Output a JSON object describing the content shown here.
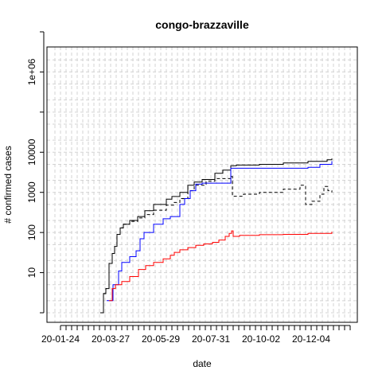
{
  "chart_data": {
    "type": "line",
    "title": "congo-brazzaville",
    "xlabel": "date",
    "ylabel": "# confirmed cases",
    "y_scale": "log10",
    "ylim": [
      1,
      10000000
    ],
    "x_tick_labels": [
      "20-01-24",
      "20-03-27",
      "20-05-29",
      "20-07-31",
      "20-10-02",
      "20-12-04"
    ],
    "y_tick_labels": [
      "10",
      "100",
      "1000",
      "10000",
      "1e+06"
    ],
    "grid": true,
    "series": [
      {
        "color": "#000000",
        "dash": "solid",
        "step": true,
        "points": [
          [
            "20-03-14",
            1
          ],
          [
            "20-03-18",
            3
          ],
          [
            "20-03-21",
            4
          ],
          [
            "20-03-25",
            17
          ],
          [
            "20-03-29",
            30
          ],
          [
            "20-04-01",
            45
          ],
          [
            "20-04-04",
            90
          ],
          [
            "20-04-08",
            130
          ],
          [
            "20-04-12",
            160
          ],
          [
            "20-04-20",
            200
          ],
          [
            "20-04-30",
            250
          ],
          [
            "20-05-09",
            350
          ],
          [
            "20-05-20",
            500
          ],
          [
            "20-06-05",
            680
          ],
          [
            "20-06-12",
            790
          ],
          [
            "20-06-22",
            1000
          ],
          [
            "20-07-02",
            1500
          ],
          [
            "20-07-10",
            1800
          ],
          [
            "20-07-20",
            2100
          ],
          [
            "20-08-05",
            3000
          ],
          [
            "20-08-15",
            3600
          ],
          [
            "20-08-25",
            4600
          ],
          [
            "20-09-01",
            4800
          ],
          [
            "20-09-30",
            5000
          ],
          [
            "20-10-30",
            5400
          ],
          [
            "20-11-30",
            5900
          ],
          [
            "20-12-24",
            6500
          ],
          [
            "20-12-30",
            7000
          ]
        ]
      },
      {
        "color": "#000000",
        "dash": "dashed",
        "step": true,
        "points": [
          [
            "20-03-14",
            1
          ],
          [
            "20-03-18",
            3
          ],
          [
            "20-03-21",
            4
          ],
          [
            "20-03-25",
            17
          ],
          [
            "20-03-29",
            30
          ],
          [
            "20-04-01",
            45
          ],
          [
            "20-04-04",
            90
          ],
          [
            "20-04-08",
            130
          ],
          [
            "20-04-12",
            160
          ],
          [
            "20-04-20",
            190
          ],
          [
            "20-04-30",
            230
          ],
          [
            "20-05-09",
            280
          ],
          [
            "20-05-20",
            360
          ],
          [
            "20-06-05",
            480
          ],
          [
            "20-06-15",
            560
          ],
          [
            "20-06-22",
            700
          ],
          [
            "20-07-02",
            1100
          ],
          [
            "20-07-10",
            1500
          ],
          [
            "20-07-25",
            1900
          ],
          [
            "20-08-05",
            2200
          ],
          [
            "20-08-25",
            2500
          ],
          [
            "20-08-27",
            800
          ],
          [
            "20-09-10",
            900
          ],
          [
            "20-09-30",
            1000
          ],
          [
            "20-10-30",
            1200
          ],
          [
            "20-11-20",
            1500
          ],
          [
            "20-11-27",
            500
          ],
          [
            "20-12-05",
            600
          ],
          [
            "20-12-15",
            900
          ],
          [
            "20-12-20",
            1400
          ],
          [
            "20-12-25",
            1100
          ],
          [
            "20-12-30",
            1000
          ]
        ]
      },
      {
        "color": "#0000ff",
        "dash": "solid",
        "step": true,
        "points": [
          [
            "20-03-22",
            2
          ],
          [
            "20-03-30",
            5
          ],
          [
            "20-04-06",
            11
          ],
          [
            "20-04-10",
            18
          ],
          [
            "20-04-20",
            25
          ],
          [
            "20-04-28",
            35
          ],
          [
            "20-05-03",
            70
          ],
          [
            "20-05-08",
            100
          ],
          [
            "20-05-20",
            160
          ],
          [
            "20-06-01",
            220
          ],
          [
            "20-06-10",
            250
          ],
          [
            "20-06-22",
            500
          ],
          [
            "20-06-28",
            700
          ],
          [
            "20-07-05",
            1100
          ],
          [
            "20-07-12",
            1600
          ],
          [
            "20-07-20",
            1700
          ],
          [
            "20-08-25",
            4000
          ],
          [
            "20-11-30",
            4200
          ],
          [
            "20-12-15",
            5000
          ],
          [
            "20-12-30",
            6000
          ]
        ]
      },
      {
        "color": "#ff0000",
        "dash": "solid",
        "step": true,
        "points": [
          [
            "20-03-25",
            2
          ],
          [
            "20-03-29",
            4
          ],
          [
            "20-04-02",
            5
          ],
          [
            "20-04-10",
            6
          ],
          [
            "20-04-20",
            8
          ],
          [
            "20-05-01",
            12
          ],
          [
            "20-05-10",
            15
          ],
          [
            "20-05-20",
            18
          ],
          [
            "20-06-01",
            22
          ],
          [
            "20-06-10",
            27
          ],
          [
            "20-06-15",
            32
          ],
          [
            "20-06-22",
            37
          ],
          [
            "20-07-02",
            42
          ],
          [
            "20-07-12",
            48
          ],
          [
            "20-07-22",
            52
          ],
          [
            "20-08-02",
            57
          ],
          [
            "20-08-10",
            65
          ],
          [
            "20-08-18",
            80
          ],
          [
            "20-08-23",
            95
          ],
          [
            "20-08-26",
            110
          ],
          [
            "20-08-28",
            80
          ],
          [
            "20-09-05",
            85
          ],
          [
            "20-09-30",
            88
          ],
          [
            "20-10-30",
            90
          ],
          [
            "20-11-30",
            95
          ],
          [
            "20-12-30",
            105
          ]
        ]
      }
    ]
  }
}
